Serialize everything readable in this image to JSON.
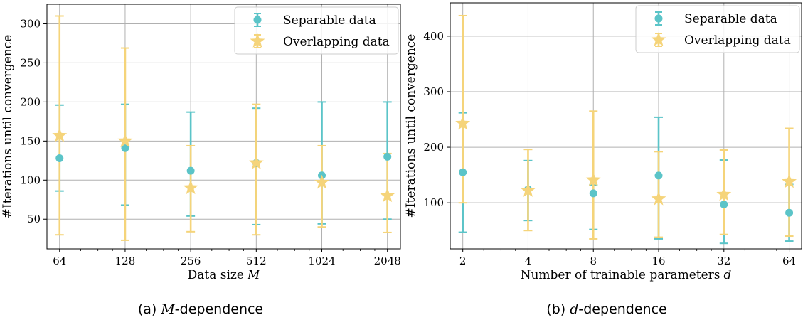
{
  "colors": {
    "separable": "#5BC4C8",
    "overlapping": "#F5D47A",
    "grid": "#b0b0b0"
  },
  "chart_data": [
    {
      "type": "scatter",
      "caption_label": "(a)",
      "caption_var": "M",
      "caption_rest": "-dependence",
      "xlabel": "Data size",
      "xlabel_var": "M",
      "ylabel": "#Iterations until convergence",
      "x_scale": "log2",
      "x": [
        64,
        128,
        256,
        512,
        1024,
        2048
      ],
      "x_tick_labels": [
        "64",
        "128",
        "256",
        "512",
        "1024",
        "2048"
      ],
      "xlim": [
        56,
        2350
      ],
      "ylim": [
        12,
        325
      ],
      "y_ticks": [
        50,
        100,
        150,
        200,
        250,
        300
      ],
      "grid": true,
      "legend_position": "top-right",
      "series": [
        {
          "name": "Separable data",
          "marker": "circle",
          "y": [
            128,
            141,
            112,
            122,
            106,
            130
          ],
          "ylow": [
            86,
            68,
            54,
            43,
            44,
            50
          ],
          "yhigh": [
            196,
            197,
            187,
            192,
            200,
            200
          ]
        },
        {
          "name": "Overlapping data",
          "marker": "star",
          "y": [
            157,
            150,
            90,
            122,
            97,
            80
          ],
          "ylow": [
            30,
            23,
            34,
            30,
            40,
            33
          ],
          "yhigh": [
            310,
            269,
            144,
            197,
            144,
            134
          ]
        }
      ]
    },
    {
      "type": "scatter",
      "caption_label": "(b)",
      "caption_var": "d",
      "caption_rest": "-dependence",
      "xlabel": "Number of trainable parameters",
      "xlabel_var": "d",
      "ylabel": "#Iterations until convergence",
      "x_scale": "log2",
      "x": [
        2,
        4,
        8,
        16,
        32,
        64
      ],
      "x_tick_labels": [
        "2",
        "4",
        "8",
        "16",
        "32",
        "64"
      ],
      "xlim": [
        1.75,
        73
      ],
      "ylim": [
        17,
        460
      ],
      "y_ticks": [
        100,
        200,
        300,
        400
      ],
      "grid": true,
      "legend_position": "top-right",
      "series": [
        {
          "name": "Separable data",
          "marker": "circle",
          "y": [
            155,
            124,
            117,
            149,
            97,
            82
          ],
          "ylow": [
            47,
            68,
            52,
            35,
            27,
            31
          ],
          "yhigh": [
            262,
            176,
            132,
            254,
            177,
            133
          ]
        },
        {
          "name": "Overlapping data",
          "marker": "star",
          "y": [
            243,
            122,
            141,
            107,
            115,
            138
          ],
          "ylow": [
            100,
            50,
            35,
            38,
            43,
            40
          ],
          "yhigh": [
            437,
            196,
            265,
            192,
            195,
            234
          ]
        }
      ]
    }
  ]
}
